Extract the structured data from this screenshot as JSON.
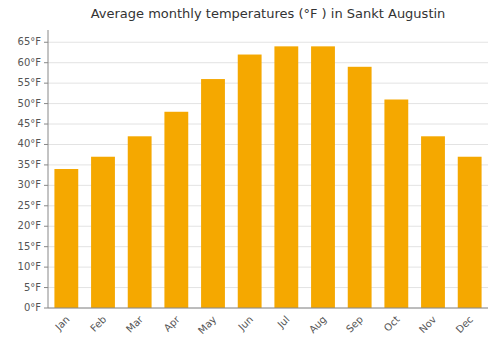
{
  "chart_data": {
    "type": "bar",
    "title": "Average monthly temperatures (°F ) in Sankt Augustin",
    "categories": [
      "Jan",
      "Feb",
      "Mar",
      "Apr",
      "May",
      "Jun",
      "Jul",
      "Aug",
      "Sep",
      "Oct",
      "Nov",
      "Dec"
    ],
    "values": [
      34,
      37,
      42,
      48,
      56,
      62,
      64,
      64,
      59,
      51,
      42,
      37
    ],
    "color": "#F5A800",
    "ylim": [
      0,
      68
    ],
    "yticks": [
      {
        "value": 0,
        "label": "0°F"
      },
      {
        "value": 5,
        "label": "5°F"
      },
      {
        "value": 10,
        "label": "10°F"
      },
      {
        "value": 15,
        "label": "15°F"
      },
      {
        "value": 20,
        "label": "20°F"
      },
      {
        "value": 25,
        "label": "25°F"
      },
      {
        "value": 30,
        "label": "30°F"
      },
      {
        "value": 35,
        "label": "35°F"
      },
      {
        "value": 40,
        "label": "40°F"
      },
      {
        "value": 45,
        "label": "45°F"
      },
      {
        "value": 50,
        "label": "50°F"
      },
      {
        "value": 55,
        "label": "55°F"
      },
      {
        "value": 60,
        "label": "60°F"
      },
      {
        "value": 65,
        "label": "65°F"
      }
    ],
    "grid": true
  }
}
